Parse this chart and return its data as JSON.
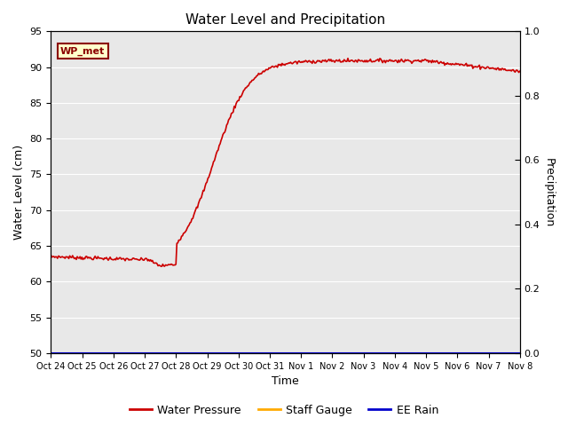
{
  "title": "Water Level and Precipitation",
  "xlabel": "Time",
  "ylabel_left": "Water Level (cm)",
  "ylabel_right": "Precipitation",
  "ylim_left": [
    50,
    95
  ],
  "ylim_right": [
    0.0,
    1.0
  ],
  "yticks_left": [
    50,
    55,
    60,
    65,
    70,
    75,
    80,
    85,
    90,
    95
  ],
  "yticks_right": [
    0.0,
    0.2,
    0.4,
    0.6,
    0.8,
    1.0
  ],
  "x_tick_labels": [
    "Oct 24",
    "Oct 25",
    "Oct 26",
    "Oct 27",
    "Oct 28",
    "Oct 29",
    "Oct 30",
    "Oct 31",
    "Nov 1",
    "Nov 2",
    "Nov 3",
    "Nov 4",
    "Nov 5",
    "Nov 6",
    "Nov 7",
    "Nov 8"
  ],
  "water_pressure_color": "#cc0000",
  "staff_gauge_color": "#ffaa00",
  "ee_rain_color": "#0000cc",
  "background_color": "#e8e8e8",
  "grid_color": "#ffffff",
  "annotation_text": "WP_met",
  "annotation_bg": "#ffffcc",
  "annotation_border": "#8b0000",
  "annotation_text_color": "#8b0000",
  "legend_entries": [
    "Water Pressure",
    "Staff Gauge",
    "EE Rain"
  ],
  "fig_width": 6.4,
  "fig_height": 4.8,
  "dpi": 100
}
